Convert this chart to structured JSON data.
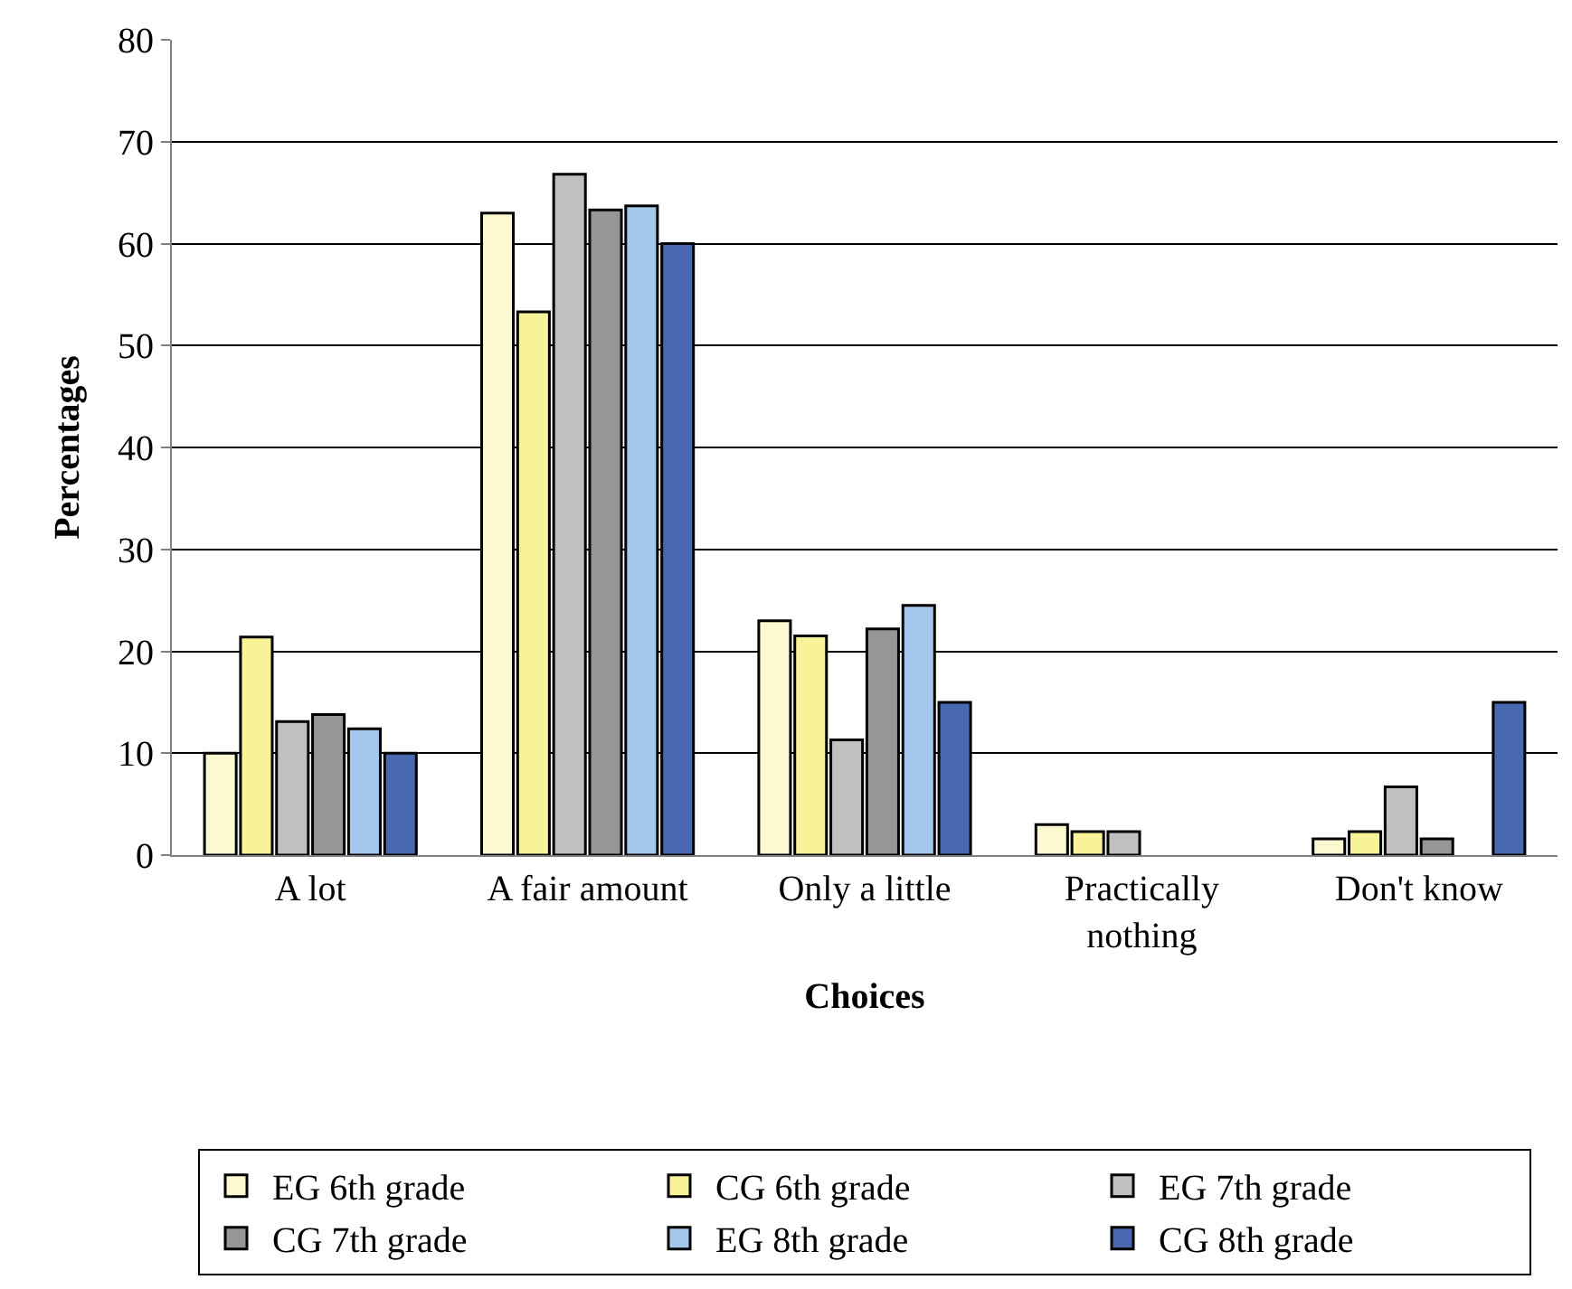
{
  "chart_data": {
    "type": "bar",
    "xlabel": "Choices",
    "ylabel": "Percentages",
    "categories": [
      "A lot",
      "A fair amount",
      "Only a little",
      "Practically\nnothing",
      "Don't know"
    ],
    "series": [
      {
        "name": "EG 6th grade",
        "color": "#fcf8d0",
        "values": [
          10,
          63,
          23,
          3,
          1.6
        ]
      },
      {
        "name": "CG 6th grade",
        "color": "#f8f298",
        "values": [
          21.4,
          53.3,
          21.5,
          2.3,
          2.3
        ]
      },
      {
        "name": "EG 7th grade",
        "color": "#c0c0c0",
        "values": [
          13.1,
          66.8,
          11.3,
          2.3,
          6.7
        ]
      },
      {
        "name": "CG 7th grade",
        "color": "#969696",
        "values": [
          13.8,
          63.3,
          22.2,
          null,
          1.6
        ]
      },
      {
        "name": "EG 8th grade",
        "color": "#a4c8ec",
        "values": [
          12.4,
          63.7,
          24.5,
          null,
          null
        ]
      },
      {
        "name": "CG 8th grade",
        "color": "#4868b0",
        "values": [
          10,
          60,
          15,
          null,
          15
        ]
      }
    ],
    "ylim": [
      0,
      80
    ],
    "yticks": [
      0,
      10,
      20,
      30,
      40,
      50,
      60,
      70,
      80
    ],
    "grid": "y",
    "legend": "bottom"
  }
}
